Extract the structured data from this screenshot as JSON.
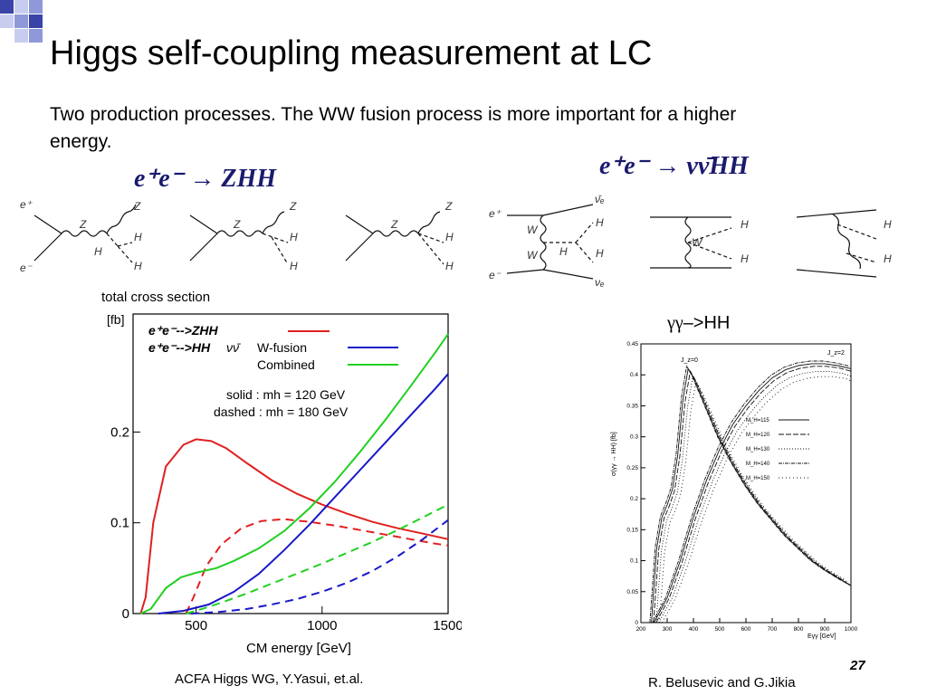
{
  "slide": {
    "title": "Higgs self-coupling measurement at LC",
    "subtitle": "Two production processes. The WW fusion process is more important for a higher energy.",
    "process_zhh": "e⁺e⁻ → ZHH",
    "process_nnhh": "e⁺e⁻ → νν̄HH",
    "gg_label_greek": "γγ",
    "gg_label_arrow": "–>HH",
    "credit_left": "ACFA Higgs WG, Y.Yasui, et.al.",
    "credit_right": "R. Belusevic and G.Jikia",
    "page_number": "27",
    "accent_colors": [
      "#3a44a8",
      "#8f98d8",
      "#c8cdef"
    ]
  },
  "diagram_labels": {
    "e_plus": "e⁺",
    "e_minus": "e⁻",
    "Z": "Z",
    "H": "H",
    "W": "W",
    "nu_bar": "ν̄ₑ",
    "nu": "νₑ"
  },
  "chart_data": [
    {
      "type": "line",
      "title": "total cross section",
      "ylabel": "[fb]",
      "xlabel": "CM energy  [GeV]",
      "xlim": [
        250,
        1500
      ],
      "ylim": [
        0,
        0.33
      ],
      "x_ticks": [
        "500",
        "1000",
        "1500"
      ],
      "y_ticks": [
        "0",
        "0.1",
        "0.2"
      ],
      "legend": {
        "entries": [
          {
            "label_main": "e⁺e⁻-->ZHH",
            "label_suffix": "",
            "color": "#e02020"
          },
          {
            "label_main": "e⁺e⁻-->HH",
            "label_suffix": "νν̄",
            "color": ""
          },
          {
            "label_main": "W-fusion",
            "label_suffix": "",
            "color": "#1818c8"
          },
          {
            "label_main": "Combined",
            "label_suffix": "",
            "color": "#20d020"
          }
        ],
        "note_solid": "solid :  mh = 120 GeV",
        "note_dashed": "dashed : mh = 180 GeV"
      },
      "series": [
        {
          "name": "e⁺e⁻-->ZHH",
          "style": "solid",
          "color": "#e02020",
          "x": [
            280,
            300,
            330,
            380,
            450,
            500,
            560,
            620,
            700,
            800,
            900,
            1000,
            1100,
            1200,
            1300,
            1400,
            1500
          ],
          "y": [
            0,
            0.018,
            0.1,
            0.162,
            0.186,
            0.192,
            0.19,
            0.182,
            0.166,
            0.147,
            0.132,
            0.12,
            0.11,
            0.101,
            0.094,
            0.088,
            0.082
          ]
        },
        {
          "name": "e⁺e⁻-->ZHH",
          "style": "dashed",
          "color": "#e02020",
          "x": [
            460,
            490,
            540,
            600,
            680,
            760,
            850,
            950,
            1050,
            1150,
            1250,
            1350,
            1450,
            1500
          ],
          "y": [
            0,
            0.018,
            0.052,
            0.076,
            0.094,
            0.102,
            0.104,
            0.101,
            0.097,
            0.092,
            0.087,
            0.082,
            0.077,
            0.075
          ]
        },
        {
          "name": "W-fusion",
          "style": "solid",
          "color": "#1818c8",
          "x": [
            350,
            450,
            550,
            650,
            750,
            850,
            950,
            1050,
            1150,
            1250,
            1350,
            1450,
            1500
          ],
          "y": [
            0,
            0.003,
            0.01,
            0.024,
            0.044,
            0.07,
            0.098,
            0.128,
            0.158,
            0.188,
            0.218,
            0.248,
            0.264
          ]
        },
        {
          "name": "W-fusion",
          "style": "dashed",
          "color": "#1818c8",
          "x": [
            480,
            600,
            700,
            800,
            900,
            1000,
            1100,
            1200,
            1300,
            1400,
            1500
          ],
          "y": [
            0,
            0.002,
            0.005,
            0.01,
            0.016,
            0.024,
            0.034,
            0.047,
            0.063,
            0.082,
            0.103
          ]
        },
        {
          "name": "Combined",
          "style": "solid",
          "color": "#20d020",
          "x": [
            280,
            320,
            380,
            440,
            500,
            580,
            650,
            750,
            850,
            950,
            1050,
            1150,
            1250,
            1350,
            1450,
            1500
          ],
          "y": [
            0,
            0.005,
            0.028,
            0.04,
            0.045,
            0.05,
            0.058,
            0.072,
            0.091,
            0.116,
            0.145,
            0.178,
            0.213,
            0.25,
            0.288,
            0.308
          ]
        },
        {
          "name": "Combined",
          "style": "dashed",
          "color": "#20d020",
          "x": [
            460,
            500,
            600,
            700,
            800,
            900,
            1000,
            1100,
            1200,
            1300,
            1400,
            1500
          ],
          "y": [
            0,
            0.003,
            0.012,
            0.022,
            0.033,
            0.044,
            0.055,
            0.067,
            0.079,
            0.092,
            0.106,
            0.12
          ]
        }
      ]
    },
    {
      "type": "line",
      "ylabel": "σ(γγ → HH) [fb]",
      "xlabel": "Eγγ [GeV]",
      "xlim": [
        200,
        1000
      ],
      "ylim": [
        0,
        0.45
      ],
      "x_ticks": [
        "200",
        "300",
        "400",
        "500",
        "600",
        "700",
        "800",
        "900",
        "1000"
      ],
      "y_ticks": [
        "0",
        "0.05",
        "0.1",
        "0.15",
        "0.2",
        "0.25",
        "0.3",
        "0.35",
        "0.4",
        "0.45"
      ],
      "annotations": [
        "J_z=0",
        "J_z=2"
      ],
      "legend_entries": [
        "M_H=115",
        "M_H=120",
        "M_H=130",
        "M_H=140",
        "M_H=150"
      ],
      "series": [
        {
          "name": "J_z=0",
          "x": [
            240,
            260,
            280,
            300,
            320,
            340,
            360,
            380,
            400,
            450,
            500,
            550,
            600,
            650,
            700,
            750,
            800,
            850,
            900,
            950,
            1000
          ],
          "y": [
            0,
            0.12,
            0.17,
            0.19,
            0.215,
            0.27,
            0.36,
            0.41,
            0.395,
            0.345,
            0.295,
            0.255,
            0.22,
            0.19,
            0.165,
            0.14,
            0.12,
            0.1,
            0.085,
            0.072,
            0.06
          ]
        },
        {
          "name": "J_z=2",
          "x": [
            250,
            300,
            350,
            400,
            450,
            500,
            550,
            600,
            650,
            700,
            750,
            800,
            850,
            900,
            950,
            1000
          ],
          "y": [
            0,
            0.04,
            0.1,
            0.17,
            0.23,
            0.28,
            0.32,
            0.35,
            0.375,
            0.395,
            0.408,
            0.415,
            0.418,
            0.418,
            0.415,
            0.41
          ]
        }
      ]
    }
  ]
}
